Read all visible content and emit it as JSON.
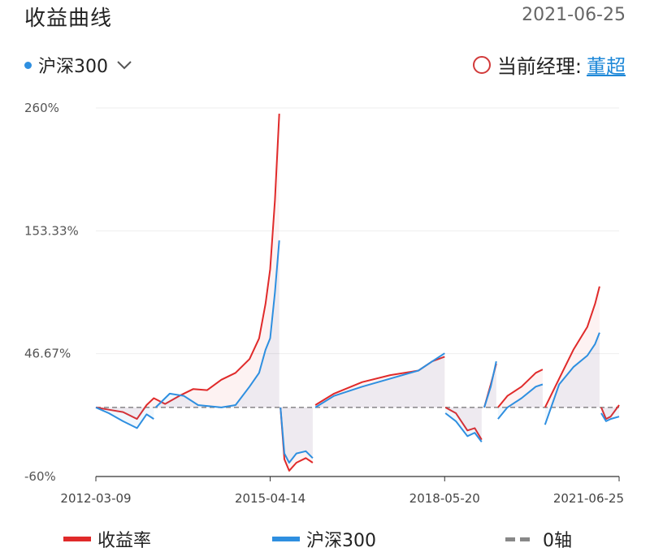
{
  "header": {
    "title": "收益曲线",
    "date": "2021-06-25"
  },
  "selector": {
    "index_label": "沪深300",
    "dot_color": "#2e8fe0",
    "icon": "chevron-down-icon"
  },
  "manager": {
    "label": "当前经理:",
    "name": "董超",
    "icon": "circle-icon"
  },
  "colors": {
    "fund": "#e02a2a",
    "index": "#2e8fe0",
    "zero": "#888888"
  },
  "legend": {
    "fund": "收益率",
    "index": "沪深300",
    "zero": "0轴"
  },
  "chart_data": {
    "type": "line",
    "x_ticks": [
      "2012-03-09",
      "2015-04-14",
      "2018-05-20",
      "2021-06-25"
    ],
    "y_ticks": [
      "260%",
      "153.33%",
      "46.67%",
      "-60%"
    ],
    "ylim": [
      -60,
      260
    ],
    "xlim": [
      "2012-03-09",
      "2021-06-25"
    ],
    "grid": true,
    "legend_position": "bottom",
    "series": [
      {
        "name": "收益率",
        "points": [
          [
            "2012-03-09",
            0
          ],
          [
            "2012-06-01",
            -2
          ],
          [
            "2012-09-01",
            -4
          ],
          [
            "2012-12-01",
            -10
          ],
          [
            "2013-02-01",
            2
          ],
          [
            "2013-03-20",
            8
          ],
          [
            "2013-06-01",
            3
          ],
          [
            "2013-09-01",
            10
          ],
          [
            "2013-12-01",
            16
          ],
          [
            "2014-03-01",
            15
          ],
          [
            "2014-06-01",
            24
          ],
          [
            "2014-09-01",
            30
          ],
          [
            "2014-12-01",
            42
          ],
          [
            "2015-02-01",
            60
          ],
          [
            "2015-03-15",
            90
          ],
          [
            "2015-04-14",
            120
          ],
          [
            "2015-05-15",
            180
          ],
          [
            "2015-06-12",
            255
          ],
          [
            null,
            null
          ],
          [
            "2015-06-20",
            0
          ],
          [
            "2015-07-15",
            -45
          ],
          [
            "2015-08-15",
            -55
          ],
          [
            "2015-10-01",
            -48
          ],
          [
            "2015-12-01",
            -44
          ],
          [
            "2016-01-15",
            -48
          ],
          [
            null,
            null
          ],
          [
            "2016-02-01",
            2
          ],
          [
            "2016-06-01",
            12
          ],
          [
            "2016-12-01",
            22
          ],
          [
            "2017-06-01",
            28
          ],
          [
            "2017-12-01",
            32
          ],
          [
            "2018-03-01",
            40
          ],
          [
            "2018-05-20",
            44
          ],
          [
            null,
            null
          ],
          [
            "2018-05-25",
            0
          ],
          [
            "2018-08-01",
            -5
          ],
          [
            "2018-10-15",
            -20
          ],
          [
            "2018-12-01",
            -18
          ],
          [
            "2019-01-15",
            -28
          ],
          [
            null,
            null
          ],
          [
            "2019-02-01",
            0
          ],
          [
            "2019-03-15",
            20
          ],
          [
            "2019-04-20",
            38
          ],
          [
            null,
            null
          ],
          [
            "2019-05-01",
            0
          ],
          [
            "2019-07-01",
            10
          ],
          [
            "2019-10-01",
            18
          ],
          [
            "2020-01-01",
            30
          ],
          [
            "2020-02-15",
            33
          ],
          [
            null,
            null
          ],
          [
            "2020-03-01",
            0
          ],
          [
            "2020-06-01",
            25
          ],
          [
            "2020-09-01",
            50
          ],
          [
            "2020-12-01",
            70
          ],
          [
            "2021-01-20",
            90
          ],
          [
            "2021-02-18",
            105
          ],
          [
            null,
            null
          ],
          [
            "2021-03-01",
            0
          ],
          [
            "2021-04-01",
            -10
          ],
          [
            "2021-05-01",
            -8
          ],
          [
            "2021-06-25",
            2
          ]
        ]
      },
      {
        "name": "沪深300",
        "points": [
          [
            "2012-03-09",
            0
          ],
          [
            "2012-06-01",
            -5
          ],
          [
            "2012-09-01",
            -12
          ],
          [
            "2012-12-01",
            -18
          ],
          [
            "2013-02-01",
            -6
          ],
          [
            "2013-03-20",
            -10
          ],
          [
            null,
            null
          ],
          [
            "2013-04-01",
            0
          ],
          [
            "2013-07-01",
            12
          ],
          [
            "2013-10-01",
            10
          ],
          [
            "2014-01-01",
            2
          ],
          [
            "2014-06-01",
            0
          ],
          [
            "2014-09-01",
            2
          ],
          [
            "2014-12-01",
            18
          ],
          [
            "2015-02-01",
            30
          ],
          [
            "2015-03-15",
            50
          ],
          [
            "2015-04-14",
            60
          ],
          [
            "2015-05-15",
            100
          ],
          [
            "2015-06-12",
            145
          ],
          [
            null,
            null
          ],
          [
            "2015-06-20",
            0
          ],
          [
            "2015-07-15",
            -40
          ],
          [
            "2015-08-15",
            -48
          ],
          [
            "2015-10-01",
            -40
          ],
          [
            "2015-12-01",
            -38
          ],
          [
            "2016-01-15",
            -44
          ],
          [
            null,
            null
          ],
          [
            "2016-02-01",
            0
          ],
          [
            "2016-06-01",
            10
          ],
          [
            "2016-12-01",
            18
          ],
          [
            "2017-06-01",
            25
          ],
          [
            "2017-12-01",
            32
          ],
          [
            "2018-03-01",
            40
          ],
          [
            "2018-05-20",
            47
          ],
          [
            null,
            null
          ],
          [
            "2018-05-25",
            -5
          ],
          [
            "2018-08-01",
            -12
          ],
          [
            "2018-10-15",
            -25
          ],
          [
            "2018-12-01",
            -22
          ],
          [
            "2019-01-15",
            -30
          ],
          [
            null,
            null
          ],
          [
            "2019-02-01",
            0
          ],
          [
            "2019-03-15",
            18
          ],
          [
            "2019-04-20",
            40
          ],
          [
            null,
            null
          ],
          [
            "2019-05-01",
            -10
          ],
          [
            "2019-07-01",
            0
          ],
          [
            "2019-10-01",
            8
          ],
          [
            "2020-01-01",
            18
          ],
          [
            "2020-02-15",
            20
          ],
          [
            null,
            null
          ],
          [
            "2020-03-01",
            -15
          ],
          [
            "2020-06-01",
            20
          ],
          [
            "2020-09-01",
            35
          ],
          [
            "2020-12-01",
            45
          ],
          [
            "2021-01-20",
            55
          ],
          [
            "2021-02-18",
            65
          ],
          [
            null,
            null
          ],
          [
            "2021-03-01",
            -5
          ],
          [
            "2021-04-01",
            -12
          ],
          [
            "2021-05-01",
            -10
          ],
          [
            "2021-06-25",
            -8
          ]
        ]
      }
    ]
  }
}
